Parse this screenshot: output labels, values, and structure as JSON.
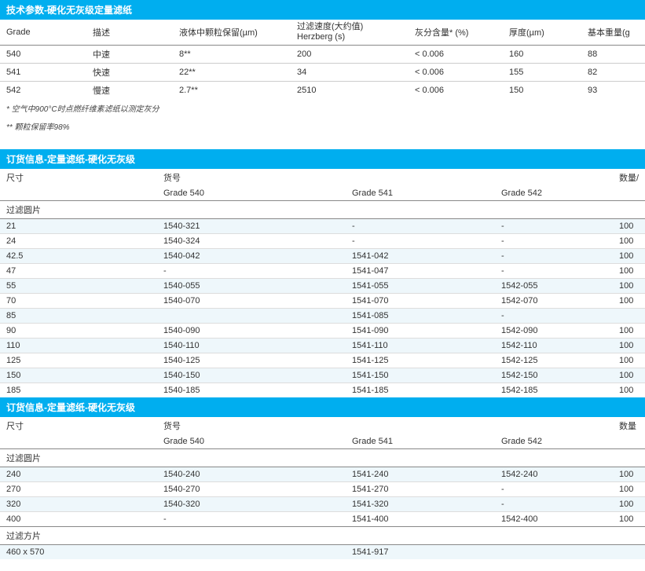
{
  "tech_table": {
    "title": "技术参数-硬化无灰级定量滤纸",
    "columns": [
      "Grade",
      "描述",
      "液体中颗粒保留(µm)",
      "过滤速度(大约值)\nHerzberg (s)",
      "灰分含量* (%)",
      "厚度(µm)",
      "基本重量(g"
    ],
    "rows": [
      [
        "540",
        "中速",
        "8**",
        "200",
        "< 0.006",
        "160",
        "88"
      ],
      [
        "541",
        "快速",
        "22**",
        "34",
        "< 0.006",
        "155",
        "82"
      ],
      [
        "542",
        "慢速",
        "2.7**",
        "2510",
        "< 0.006",
        "150",
        "93"
      ]
    ],
    "note1": "* 空气中900°C时点燃纤维素滤纸以测定灰分",
    "note2": "** 颗粒保留率98%"
  },
  "order1": {
    "title": "订货信息-定量滤纸-硬化无灰级",
    "head1": [
      "尺寸",
      "货号",
      "",
      "",
      "数量/"
    ],
    "head2": [
      "",
      "Grade 540",
      "Grade 541",
      "Grade 542",
      ""
    ],
    "group": "过滤圆片",
    "rows": [
      [
        "21",
        "1540-321",
        "-",
        "-",
        "100"
      ],
      [
        "24",
        "1540-324",
        "-",
        "-",
        "100"
      ],
      [
        "42.5",
        "1540-042",
        "1541-042",
        "-",
        "100"
      ],
      [
        "47",
        "-",
        "1541-047",
        "-",
        "100"
      ],
      [
        "55",
        "1540-055",
        "1541-055",
        "1542-055",
        "100"
      ],
      [
        "70",
        "1540-070",
        "1541-070",
        "1542-070",
        "100"
      ],
      [
        "85",
        "",
        "1541-085",
        "-",
        ""
      ],
      [
        "90",
        "1540-090",
        "1541-090",
        "1542-090",
        "100"
      ],
      [
        "110",
        "1540-110",
        "1541-110",
        "1542-110",
        "100"
      ],
      [
        "125",
        "1540-125",
        "1541-125",
        "1542-125",
        "100"
      ],
      [
        "150",
        "1540-150",
        "1541-150",
        "1542-150",
        "100"
      ],
      [
        "185",
        "1540-185",
        "1541-185",
        "1542-185",
        "100"
      ]
    ]
  },
  "order2": {
    "title": "订货信息-定量滤纸-硬化无灰级",
    "head1": [
      "尺寸",
      "货号",
      "",
      "",
      "数量"
    ],
    "head2": [
      "",
      "Grade 540",
      "Grade 541",
      "Grade 542",
      ""
    ],
    "group1": "过滤圆片",
    "rows1": [
      [
        "240",
        "1540-240",
        "1541-240",
        "1542-240",
        "100"
      ],
      [
        "270",
        "1540-270",
        "1541-270",
        "-",
        "100"
      ],
      [
        "320",
        "1540-320",
        "1541-320",
        "-",
        "100"
      ],
      [
        "400",
        "-",
        "1541-400",
        "1542-400",
        "100"
      ]
    ],
    "group2": "过滤方片",
    "rows2": [
      [
        "460 x 570",
        "",
        "1541-917",
        "",
        ""
      ]
    ]
  }
}
